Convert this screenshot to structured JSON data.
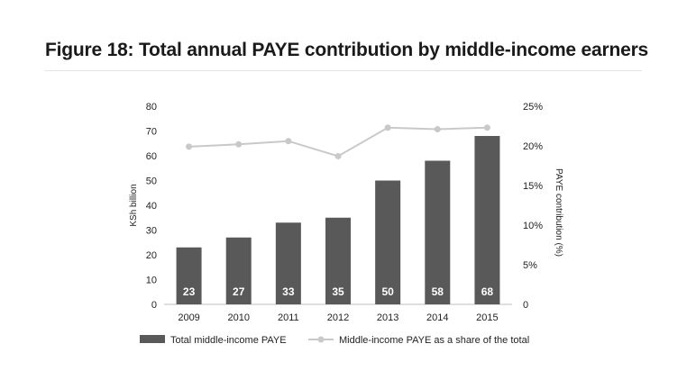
{
  "title": "Figure 18: Total annual PAYE contribution by middle-income earners",
  "colors": {
    "bar": "#595959",
    "line": "#c9c9c9",
    "axis": "#bfbfbf"
  },
  "chart_data": {
    "type": "bar",
    "categories": [
      "2009",
      "2010",
      "2011",
      "2012",
      "2013",
      "2014",
      "2015"
    ],
    "series": [
      {
        "name": "Total middle-income PAYE",
        "type": "bar",
        "axis": "left",
        "values": [
          23,
          27,
          33,
          35,
          50,
          58,
          68
        ],
        "value_labels": [
          "23",
          "27",
          "33",
          "35",
          "50",
          "58",
          "68"
        ]
      },
      {
        "name": "Middle-income PAYE as a share of the total",
        "type": "line",
        "axis": "right",
        "values": [
          19.9,
          20.2,
          20.6,
          18.7,
          22.3,
          22.1,
          22.3
        ]
      }
    ],
    "ylabel": "KSh billion",
    "y2label": "PAYE contribution (%)",
    "ylim": [
      0,
      80
    ],
    "y2lim": [
      0,
      25
    ],
    "yticks": [
      "0",
      "10",
      "20",
      "30",
      "40",
      "50",
      "60",
      "70",
      "80"
    ],
    "y2ticks": [
      "0",
      "5%",
      "10%",
      "15%",
      "20%",
      "25%"
    ],
    "legend": "bottom",
    "grid": false
  }
}
